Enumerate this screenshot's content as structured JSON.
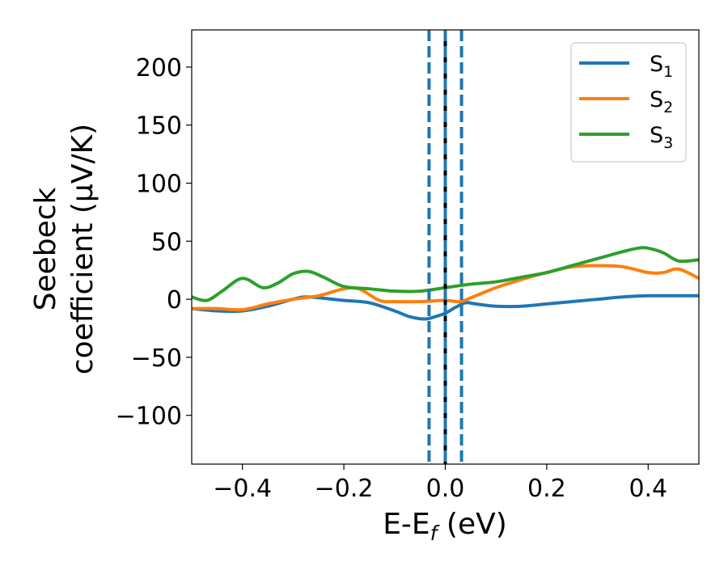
{
  "chart_data": {
    "type": "line",
    "xlabel_main": "E-E",
    "xlabel_sub": "f",
    "xlabel_unit": " (eV)",
    "ylabel_line1": "Seebeck",
    "ylabel_line2": "coefficient  (μV/K)",
    "xlim": [
      -0.5,
      0.5
    ],
    "ylim": [
      -142,
      232
    ],
    "xticks": [
      {
        "value": -0.4,
        "label": "−0.4"
      },
      {
        "value": -0.2,
        "label": "−0.2"
      },
      {
        "value": 0.0,
        "label": "0.0"
      },
      {
        "value": 0.2,
        "label": "0.2"
      },
      {
        "value": 0.4,
        "label": "0.4"
      }
    ],
    "yticks": [
      {
        "value": -100,
        "label": "−100"
      },
      {
        "value": -50,
        "label": "−50"
      },
      {
        "value": 0,
        "label": "0"
      },
      {
        "value": 50,
        "label": "50"
      },
      {
        "value": 100,
        "label": "100"
      },
      {
        "value": 150,
        "label": "150"
      },
      {
        "value": 200,
        "label": "200"
      }
    ],
    "legend_position": "top-right",
    "grid": false,
    "vlines": [
      {
        "x": -0.032,
        "color": "#1f77b4",
        "style": "dashed"
      },
      {
        "x": 0.0,
        "color": "#000000",
        "style": "solid"
      },
      {
        "x": 0.0,
        "color": "#1f77b4",
        "style": "dashed"
      },
      {
        "x": 0.032,
        "color": "#1f77b4",
        "style": "dashed"
      }
    ],
    "series": [
      {
        "name": "S",
        "name_sub": "1",
        "color": "#1f77b4",
        "x": [
          -0.5,
          -0.45,
          -0.4,
          -0.35,
          -0.3,
          -0.27,
          -0.2,
          -0.15,
          -0.1,
          -0.07,
          -0.04,
          -0.02,
          0.0,
          0.02,
          0.04,
          0.06,
          0.1,
          0.15,
          0.2,
          0.25,
          0.3,
          0.35,
          0.4,
          0.45,
          0.5
        ],
        "y": [
          -8,
          -10,
          -10,
          -6,
          0,
          2,
          -1,
          -3,
          -10,
          -15,
          -17,
          -15,
          -12,
          -7,
          -3,
          -4,
          -6,
          -6,
          -4,
          -2,
          0,
          2,
          3,
          3,
          3
        ]
      },
      {
        "name": "S",
        "name_sub": "2",
        "color": "#ff7f0e",
        "x": [
          -0.5,
          -0.45,
          -0.4,
          -0.35,
          -0.3,
          -0.25,
          -0.2,
          -0.17,
          -0.13,
          -0.1,
          -0.05,
          0.0,
          0.03,
          0.06,
          0.1,
          0.15,
          0.2,
          0.25,
          0.3,
          0.35,
          0.4,
          0.43,
          0.46,
          0.5
        ],
        "y": [
          -8,
          -8,
          -9,
          -4,
          0,
          3,
          9,
          9,
          -1,
          -2,
          -2,
          -1,
          -2,
          3,
          10,
          17,
          23,
          28,
          29,
          28,
          23,
          23,
          26,
          18
        ]
      },
      {
        "name": "S",
        "name_sub": "3",
        "color": "#2ca02c",
        "x": [
          -0.5,
          -0.47,
          -0.44,
          -0.4,
          -0.36,
          -0.33,
          -0.3,
          -0.27,
          -0.24,
          -0.2,
          -0.15,
          -0.1,
          -0.05,
          0.0,
          0.05,
          0.1,
          0.15,
          0.2,
          0.25,
          0.3,
          0.35,
          0.38,
          0.4,
          0.43,
          0.46,
          0.5
        ],
        "y": [
          2,
          -1,
          7,
          18,
          10,
          14,
          22,
          24,
          19,
          11,
          9,
          7,
          7,
          10,
          13,
          15,
          19,
          23,
          29,
          35,
          41,
          44,
          44,
          40,
          33,
          34
        ]
      }
    ]
  }
}
